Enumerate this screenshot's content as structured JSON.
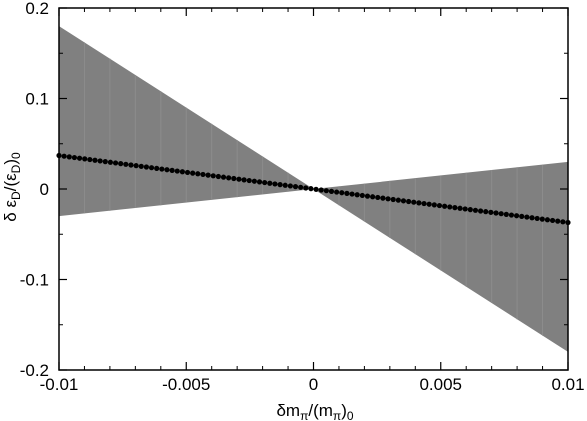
{
  "chart_data": {
    "type": "line",
    "xlabel": "δm_π/(m_π)_0",
    "ylabel": "δ ε_D/(ε_D)_0",
    "xlim": [
      -0.01,
      0.01
    ],
    "ylim": [
      -0.2,
      0.2
    ],
    "grid": false,
    "x_ticks": [
      -0.01,
      -0.005,
      0,
      0.005,
      0.01
    ],
    "x_tick_labels": [
      "-0.01",
      "-0.005",
      "0",
      "0.005",
      "0.01"
    ],
    "y_ticks": [
      -0.2,
      -0.1,
      0,
      0.1,
      0.2
    ],
    "y_tick_labels": [
      "-0.2",
      "-0.1",
      "0",
      "0.1",
      "0.2"
    ],
    "band": {
      "color": "#808080",
      "x": [
        -0.01,
        0,
        0.01
      ],
      "upper": [
        0.18,
        0,
        0.03
      ],
      "lower": [
        -0.03,
        0,
        -0.18
      ]
    },
    "series": [
      {
        "color": "#000000",
        "marker": "dot",
        "x_start": -0.01,
        "x_end": 0.01,
        "y_start": 0.037,
        "y_end": -0.037,
        "points": 100
      }
    ]
  },
  "labels": {
    "xlabel_main": "δm",
    "xlabel_sub1": "π",
    "xlabel_mid": "/(m",
    "xlabel_sub2": "π",
    "xlabel_close": ")",
    "xlabel_sub3": "0",
    "ylabel_main": "δ ε",
    "ylabel_sub1": "D",
    "ylabel_mid": "/(ε",
    "ylabel_sub2": "D",
    "ylabel_close": ")",
    "ylabel_sub3": "0"
  }
}
